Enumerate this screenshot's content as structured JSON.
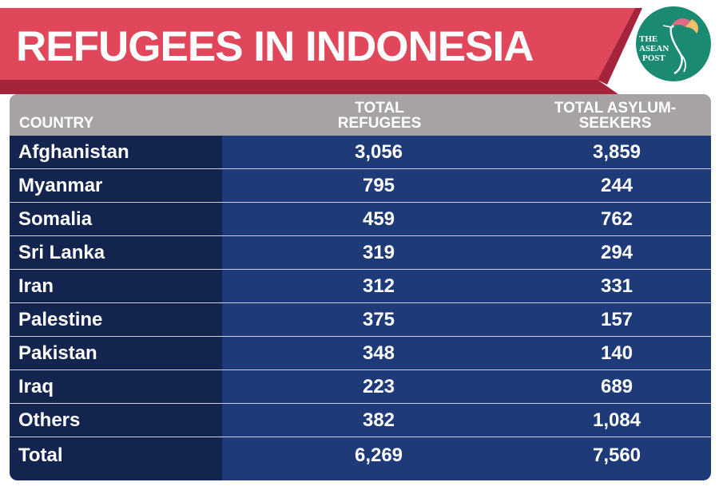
{
  "header": {
    "title": "REFUGEES IN INDONESIA",
    "banner_color": "#e0475a",
    "banner_shadow_color": "#a3243b"
  },
  "logo": {
    "line1": "THE",
    "line2": "ASEAN",
    "line3": "POST",
    "color": "#1a8a72",
    "icon": "hummingbird-icon"
  },
  "table": {
    "header_color": "#a8a3a3",
    "body_color": "#1e3a78",
    "country_band_color": "#13254f"
  },
  "chart_data": {
    "type": "table",
    "title": "REFUGEES IN INDONESIA",
    "columns": [
      "COUNTRY",
      "TOTAL REFUGEES",
      "TOTAL ASYLUM-SEEKERS"
    ],
    "column_lines": {
      "country": [
        "COUNTRY"
      ],
      "refugees": [
        "TOTAL",
        "REFUGEES"
      ],
      "asylum": [
        "TOTAL ASYLUM-",
        "SEEKERS"
      ]
    },
    "rows": [
      {
        "country": "Afghanistan",
        "refugees": "3,056",
        "asylum": "3,859"
      },
      {
        "country": "Myanmar",
        "refugees": "795",
        "asylum": "244"
      },
      {
        "country": "Somalia",
        "refugees": "459",
        "asylum": "762"
      },
      {
        "country": "Sri Lanka",
        "refugees": "319",
        "asylum": "294"
      },
      {
        "country": "Iran",
        "refugees": "312",
        "asylum": "331"
      },
      {
        "country": "Palestine",
        "refugees": "375",
        "asylum": "157"
      },
      {
        "country": "Pakistan",
        "refugees": "348",
        "asylum": "140"
      },
      {
        "country": "Iraq",
        "refugees": "223",
        "asylum": "689"
      },
      {
        "country": "Others",
        "refugees": "382",
        "asylum": "1,084"
      },
      {
        "country": "Total",
        "refugees": "6,269",
        "asylum": "7,560"
      }
    ]
  }
}
